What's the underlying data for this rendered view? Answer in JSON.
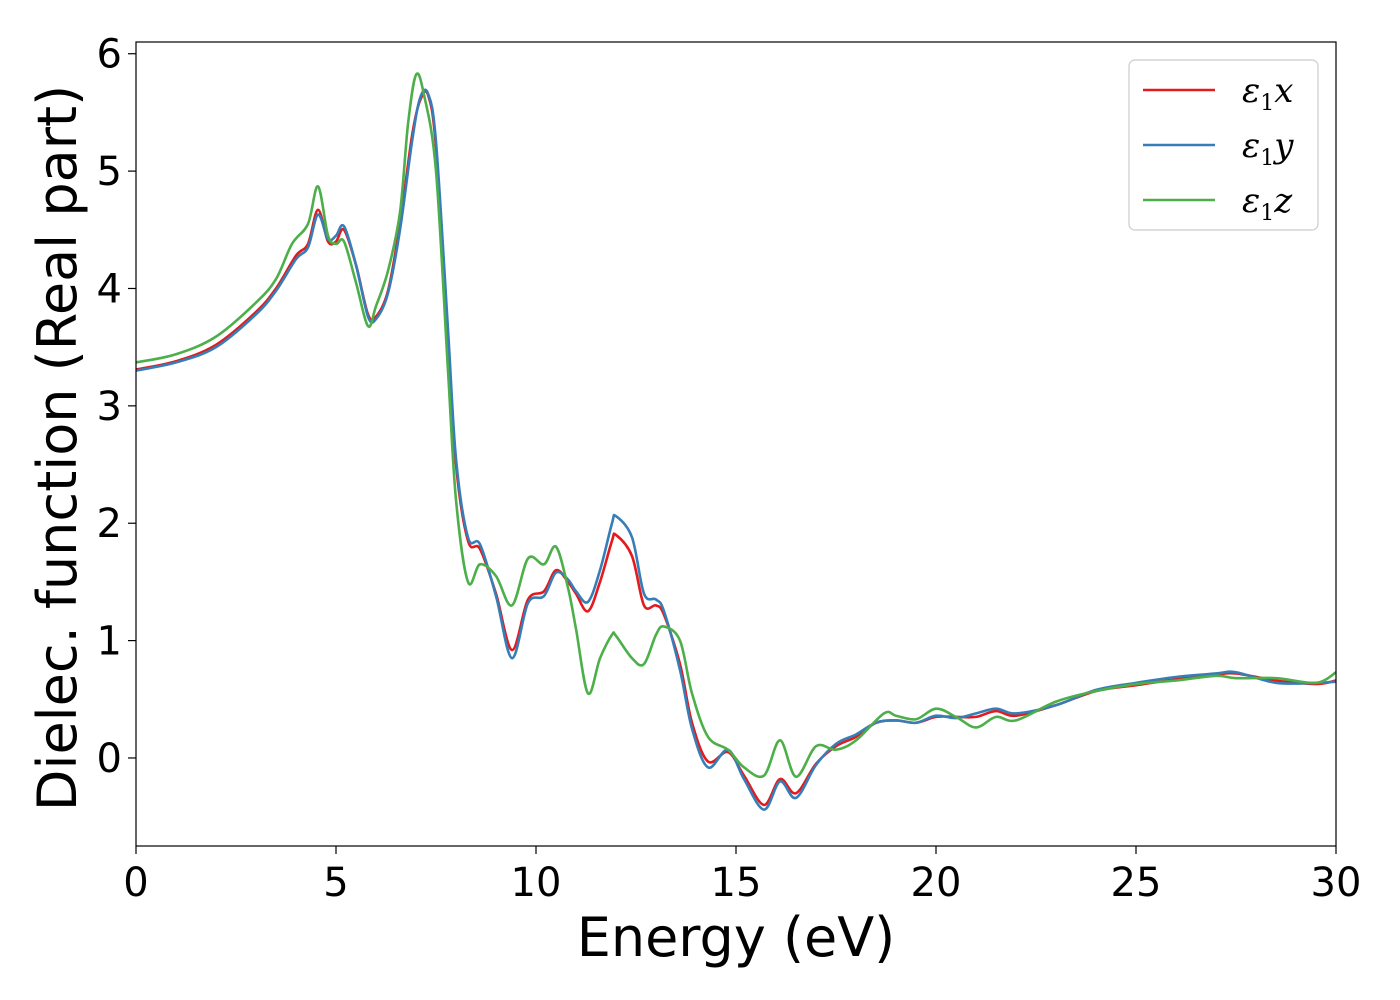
{
  "chart_data": {
    "type": "line",
    "xlabel": "Energy (eV)",
    "ylabel": "Dielec. function (Real part)",
    "xlim": [
      0,
      30
    ],
    "ylim": [
      -0.75,
      6.1
    ],
    "xticks": [
      0,
      5,
      10,
      15,
      20,
      25,
      30
    ],
    "yticks": [
      0,
      1,
      2,
      3,
      4,
      5,
      6
    ],
    "grid": false,
    "legend_position": "top-right",
    "series": [
      {
        "name": "ε1x",
        "color": "#e41a1c",
        "x": [
          0,
          1,
          2,
          3,
          3.5,
          4,
          4.3,
          4.55,
          4.8,
          5.0,
          5.2,
          5.5,
          5.8,
          6.0,
          6.3,
          6.6,
          6.9,
          7.1,
          7.3,
          7.5,
          7.8,
          8.0,
          8.3,
          8.6,
          9.0,
          9.4,
          9.8,
          10.2,
          10.5,
          10.8,
          11.0,
          11.3,
          11.6,
          11.9,
          12.0,
          12.4,
          12.7,
          13.0,
          13.2,
          13.6,
          13.9,
          14.3,
          14.8,
          15.2,
          15.7,
          16.1,
          16.5,
          17.0,
          17.5,
          18.0,
          18.5,
          19.0,
          19.5,
          20.0,
          20.5,
          21.0,
          21.5,
          22.0,
          23.0,
          24.0,
          25.0,
          26.0,
          27.0,
          27.5,
          28.5,
          29.5,
          30
        ],
        "values": [
          3.31,
          3.38,
          3.52,
          3.8,
          4.0,
          4.28,
          4.38,
          4.67,
          4.4,
          4.4,
          4.5,
          4.2,
          3.78,
          3.76,
          3.98,
          4.55,
          5.3,
          5.6,
          5.65,
          5.2,
          3.6,
          2.5,
          1.85,
          1.78,
          1.4,
          0.92,
          1.35,
          1.42,
          1.6,
          1.5,
          1.4,
          1.25,
          1.5,
          1.85,
          1.9,
          1.72,
          1.3,
          1.3,
          1.22,
          0.8,
          0.3,
          -0.03,
          0.05,
          -0.15,
          -0.4,
          -0.18,
          -0.3,
          -0.05,
          0.1,
          0.18,
          0.3,
          0.32,
          0.3,
          0.35,
          0.35,
          0.35,
          0.4,
          0.36,
          0.45,
          0.57,
          0.62,
          0.67,
          0.71,
          0.72,
          0.66,
          0.63,
          0.66
        ]
      },
      {
        "name": "ε1y",
        "color": "#377eb8",
        "x": [
          0,
          1,
          2,
          3,
          3.5,
          4,
          4.3,
          4.55,
          4.8,
          5.0,
          5.2,
          5.5,
          5.8,
          6.0,
          6.3,
          6.6,
          6.9,
          7.1,
          7.3,
          7.5,
          7.8,
          8.0,
          8.3,
          8.6,
          9.0,
          9.4,
          9.8,
          10.2,
          10.5,
          10.8,
          11.0,
          11.3,
          11.6,
          11.9,
          12.0,
          12.4,
          12.7,
          13.0,
          13.2,
          13.6,
          13.9,
          14.3,
          14.8,
          15.2,
          15.7,
          16.1,
          16.5,
          17.0,
          17.5,
          18.0,
          18.5,
          19.0,
          19.5,
          20.0,
          20.5,
          21.0,
          21.5,
          22.0,
          23.0,
          24.0,
          25.0,
          26.0,
          27.0,
          27.5,
          28.5,
          29.5,
          30
        ],
        "values": [
          3.3,
          3.37,
          3.5,
          3.78,
          3.98,
          4.25,
          4.35,
          4.63,
          4.42,
          4.45,
          4.53,
          4.2,
          3.76,
          3.74,
          3.96,
          4.5,
          5.25,
          5.62,
          5.66,
          5.25,
          3.65,
          2.55,
          1.88,
          1.82,
          1.38,
          0.85,
          1.32,
          1.38,
          1.58,
          1.52,
          1.42,
          1.33,
          1.6,
          2.0,
          2.06,
          1.88,
          1.4,
          1.35,
          1.25,
          0.75,
          0.25,
          -0.08,
          0.07,
          -0.18,
          -0.44,
          -0.2,
          -0.34,
          -0.06,
          0.12,
          0.2,
          0.3,
          0.32,
          0.3,
          0.36,
          0.34,
          0.38,
          0.42,
          0.38,
          0.45,
          0.58,
          0.64,
          0.69,
          0.72,
          0.73,
          0.64,
          0.64,
          0.65
        ]
      },
      {
        "name": "ε1z",
        "color": "#4daf4a",
        "x": [
          0,
          1,
          2,
          3,
          3.5,
          3.9,
          4.3,
          4.55,
          4.8,
          5.0,
          5.2,
          5.5,
          5.8,
          6.0,
          6.3,
          6.6,
          6.8,
          7.0,
          7.2,
          7.5,
          7.8,
          8.0,
          8.3,
          8.6,
          9.0,
          9.4,
          9.8,
          10.2,
          10.5,
          10.8,
          11.0,
          11.3,
          11.6,
          11.9,
          12.0,
          12.4,
          12.7,
          13.0,
          13.2,
          13.6,
          13.9,
          14.3,
          14.8,
          15.2,
          15.7,
          16.1,
          16.5,
          17.0,
          17.5,
          18.0,
          18.7,
          19.0,
          19.5,
          20.0,
          20.5,
          21.0,
          21.5,
          22.0,
          23.0,
          24.0,
          25.0,
          26.0,
          27.0,
          27.5,
          28.5,
          29.5,
          30
        ],
        "values": [
          3.37,
          3.44,
          3.59,
          3.88,
          4.08,
          4.38,
          4.55,
          4.87,
          4.45,
          4.38,
          4.4,
          4.05,
          3.68,
          3.85,
          4.15,
          4.65,
          5.4,
          5.82,
          5.65,
          5.0,
          3.3,
          2.2,
          1.5,
          1.65,
          1.55,
          1.3,
          1.7,
          1.65,
          1.8,
          1.45,
          1.1,
          0.55,
          0.85,
          1.05,
          1.04,
          0.85,
          0.8,
          1.05,
          1.12,
          1.0,
          0.55,
          0.18,
          0.07,
          -0.08,
          -0.15,
          0.15,
          -0.16,
          0.1,
          0.07,
          0.15,
          0.38,
          0.36,
          0.33,
          0.42,
          0.35,
          0.26,
          0.35,
          0.32,
          0.48,
          0.57,
          0.63,
          0.66,
          0.7,
          0.68,
          0.68,
          0.64,
          0.73
        ]
      }
    ]
  }
}
